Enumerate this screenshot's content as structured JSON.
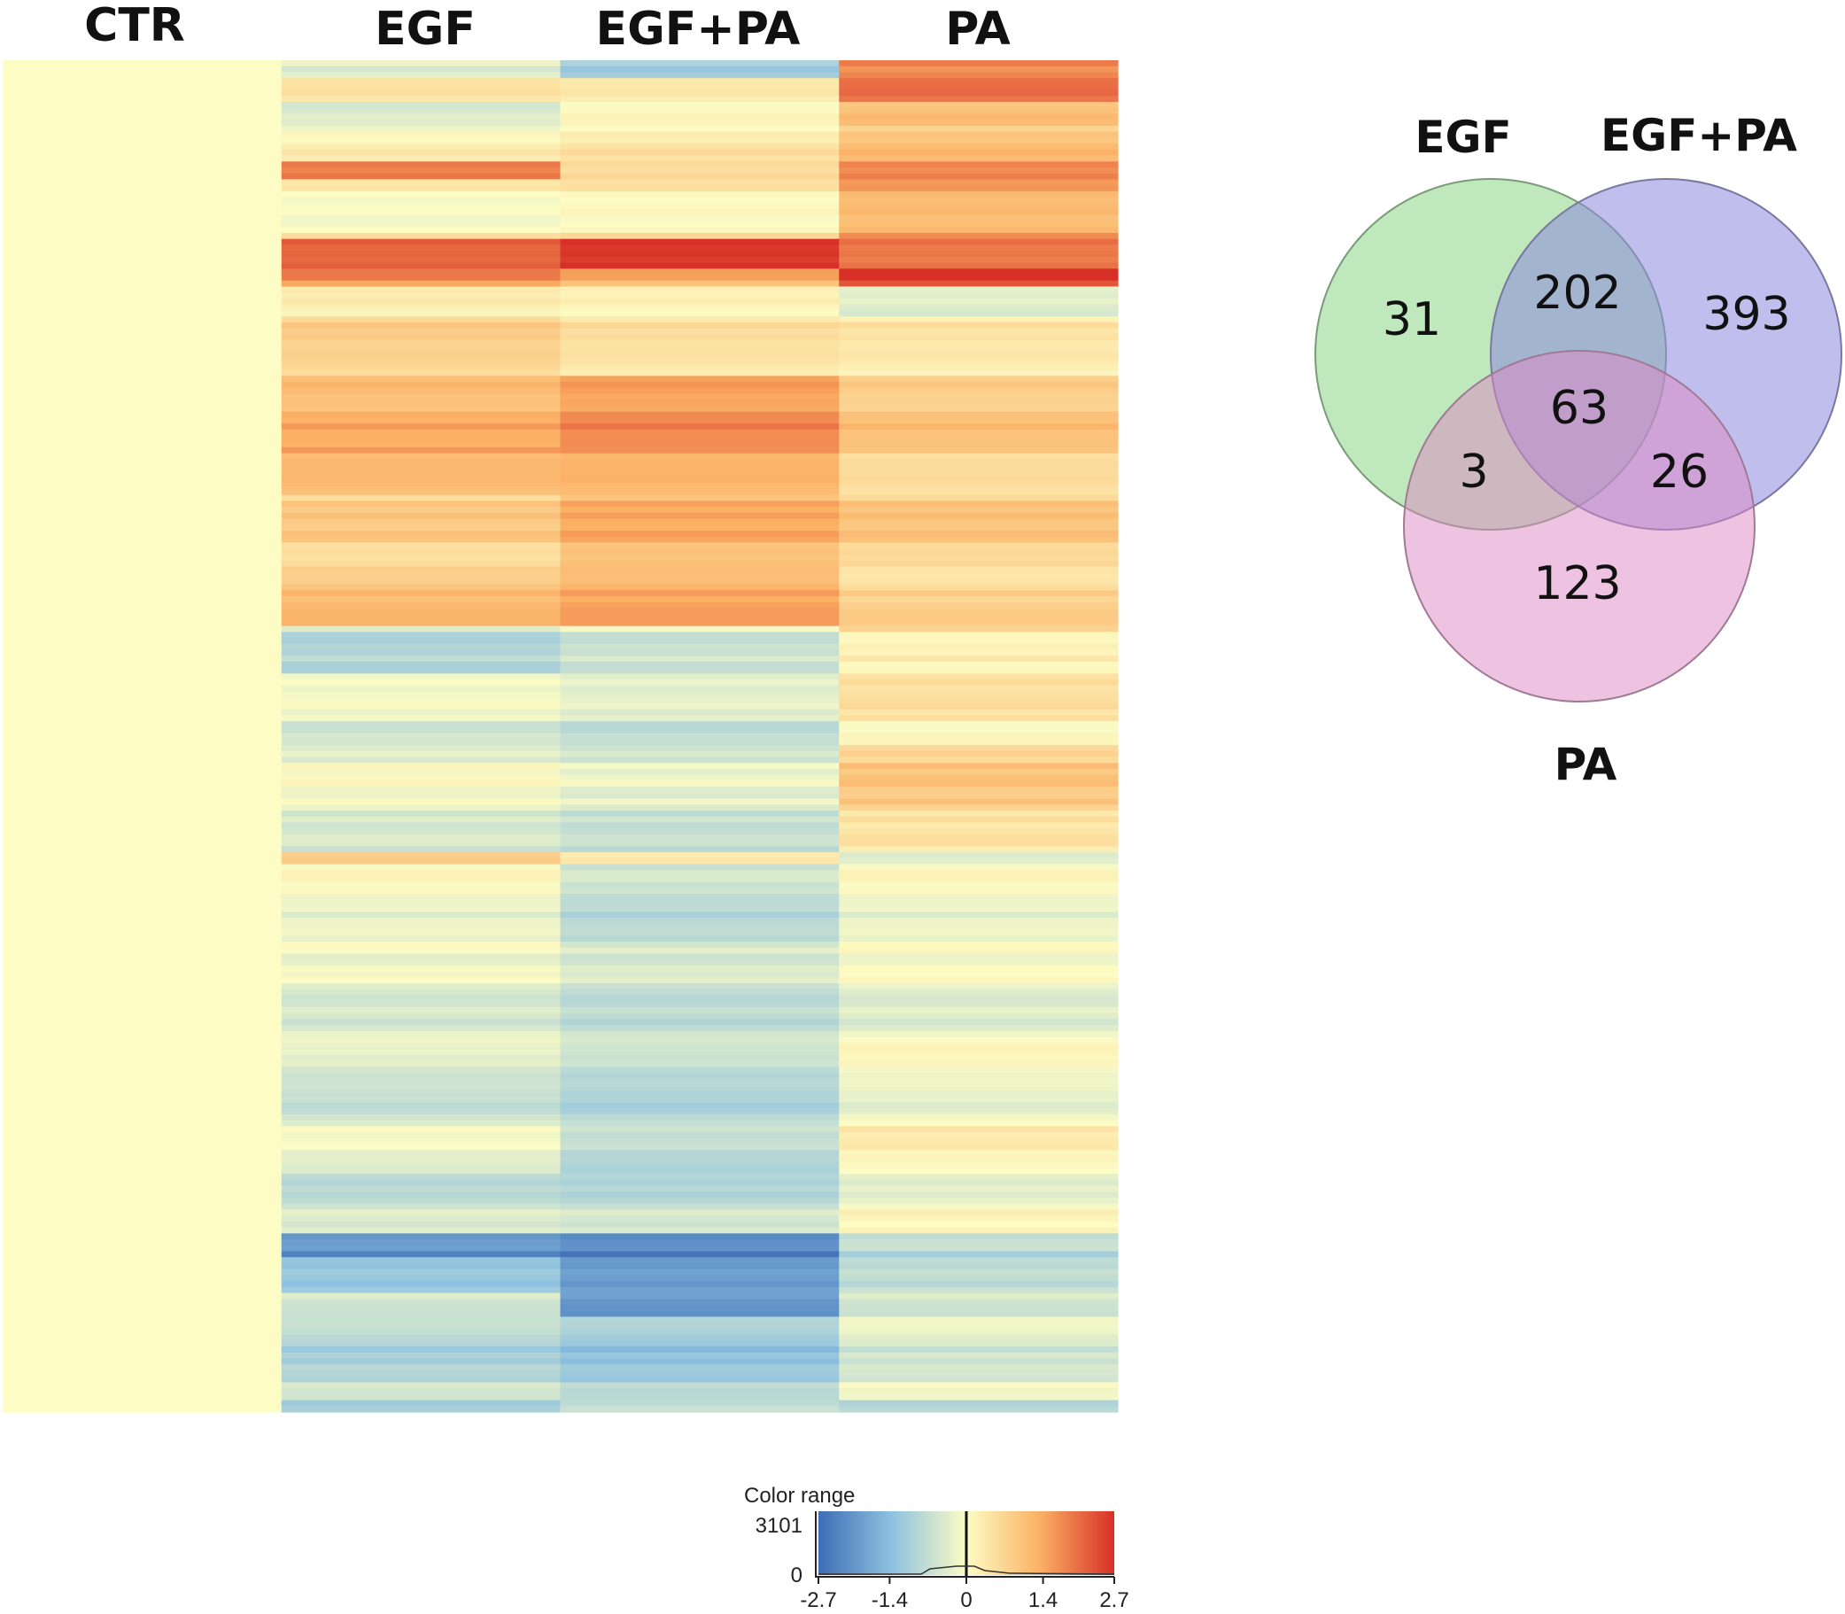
{
  "chart_data": [
    {
      "type": "heatmap",
      "columns": [
        "CTR",
        "EGF",
        "EGF+PA",
        "PA"
      ],
      "color_range": {
        "label": "Color range",
        "min": -2.7,
        "max": 2.7,
        "ticks": [
          "-2.7",
          "-1.4",
          "0",
          "1.4",
          "2.7"
        ],
        "count_max_label": "3101",
        "count_min_label": "0",
        "low_color": "#3e6db5",
        "mid_color": "#fcfcc4",
        "high_color": "#d73027"
      },
      "segments": [
        {
          "rows": 3,
          "values": [
            0,
            -0.5,
            -1.3,
            1.6
          ]
        },
        {
          "rows": 4,
          "values": [
            0,
            0.3,
            0.2,
            1.9
          ]
        },
        {
          "rows": 4,
          "values": [
            0,
            -0.3,
            0.2,
            1.2
          ]
        },
        {
          "rows": 6,
          "values": [
            0,
            0.1,
            0.3,
            1.0
          ]
        },
        {
          "rows": 3,
          "values": [
            0,
            1.7,
            0.4,
            1.6
          ]
        },
        {
          "rows": 10,
          "values": [
            0,
            0.2,
            0.3,
            1.4
          ]
        },
        {
          "rows": 5,
          "values": [
            0,
            2.0,
            2.5,
            1.8
          ]
        },
        {
          "rows": 3,
          "values": [
            0,
            1.6,
            1.2,
            2.5
          ]
        },
        {
          "rows": 5,
          "values": [
            0,
            0.4,
            0.3,
            -0.2
          ]
        },
        {
          "rows": 10,
          "values": [
            0,
            0.7,
            0.4,
            0.3
          ]
        },
        {
          "rows": 12,
          "values": [
            0,
            1.3,
            1.7,
            1.0
          ]
        },
        {
          "rows": 8,
          "values": [
            0,
            1.4,
            1.5,
            0.8
          ]
        },
        {
          "rows": 12,
          "values": [
            0,
            0.8,
            1.3,
            0.9
          ]
        },
        {
          "rows": 10,
          "values": [
            0,
            1.0,
            1.3,
            0.6
          ]
        },
        {
          "rows": 8,
          "values": [
            0,
            -0.7,
            -0.4,
            0.4
          ]
        },
        {
          "rows": 12,
          "values": [
            0,
            -0.3,
            -0.5,
            0.3
          ]
        },
        {
          "rows": 10,
          "values": [
            0,
            -0.2,
            -0.4,
            0.8
          ]
        },
        {
          "rows": 8,
          "values": [
            0,
            -0.3,
            -0.5,
            0.6
          ]
        },
        {
          "rows": 2,
          "values": [
            0,
            0.6,
            0.1,
            -0.6
          ]
        },
        {
          "rows": 14,
          "values": [
            0,
            -0.1,
            -0.7,
            -0.1
          ]
        },
        {
          "rows": 16,
          "values": [
            0,
            -0.3,
            -0.6,
            -0.2
          ]
        },
        {
          "rows": 14,
          "values": [
            0,
            -0.5,
            -0.8,
            -0.1
          ]
        },
        {
          "rows": 8,
          "values": [
            0,
            -0.3,
            -0.9,
            0.1
          ]
        },
        {
          "rows": 10,
          "values": [
            0,
            -0.6,
            -0.7,
            -0.1
          ]
        },
        {
          "rows": 4,
          "values": [
            0,
            -2.1,
            -2.3,
            -0.8
          ]
        },
        {
          "rows": 6,
          "values": [
            0,
            -1.1,
            -1.8,
            -0.6
          ]
        },
        {
          "rows": 4,
          "values": [
            0,
            -0.7,
            -2.2,
            -0.7
          ]
        },
        {
          "rows": 8,
          "values": [
            0,
            -0.9,
            -1.2,
            -0.4
          ]
        },
        {
          "rows": 6,
          "values": [
            0,
            -0.7,
            -1.0,
            -0.3
          ]
        },
        {
          "rows": 2,
          "values": [
            0,
            -1.2,
            -0.8,
            -1.0
          ]
        }
      ]
    },
    {
      "type": "venn",
      "sets": [
        "EGF",
        "EGF+PA",
        "PA"
      ],
      "regions": [
        {
          "sets": [
            "EGF"
          ],
          "value": 31
        },
        {
          "sets": [
            "EGF",
            "EGF+PA"
          ],
          "value": 202
        },
        {
          "sets": [
            "EGF+PA"
          ],
          "value": 393
        },
        {
          "sets": [
            "EGF",
            "EGF+PA",
            "PA"
          ],
          "value": 63
        },
        {
          "sets": [
            "EGF",
            "PA"
          ],
          "value": 3
        },
        {
          "sets": [
            "EGF+PA",
            "PA"
          ],
          "value": 26
        },
        {
          "sets": [
            "PA"
          ],
          "value": 123
        }
      ],
      "colors": {
        "EGF": "#7fd27a",
        "EGF+PA": "#8c88de",
        "PA": "#dd88c4"
      }
    }
  ]
}
